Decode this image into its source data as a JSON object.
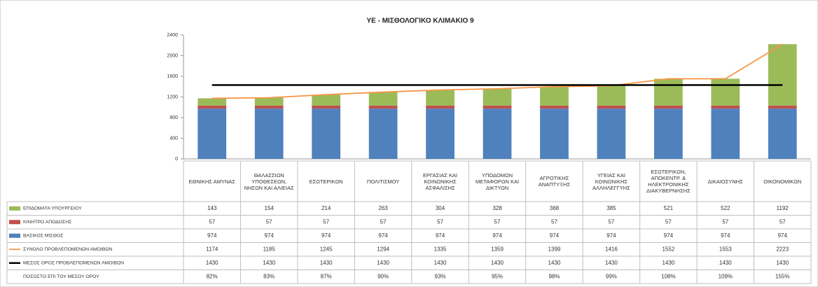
{
  "chart_data": {
    "type": "bar",
    "title": "ΥΕ - ΜΙΣΘΟΛΟΓΙΚΟ ΚΛΙΜΑΚΙΟ 9",
    "categories": [
      "ΕΘΝΙΚΗΣ ΑΜΥΝΑΣ",
      "ΘΑΛΑΣΣΙΩΝ ΥΠΟΘΕΣΕΩΝ, ΝΗΣΩΝ ΚΑΙ ΑΛΙΕΙΑΣ",
      "ΕΣΩΤΕΡΙΚΩΝ",
      "ΠΟΛΙΤΙΣΜΟΥ",
      "ΕΡΓΑΣΙΑΣ ΚΑΙ ΚΟΙΝΩΝΙΚΗΣ ΑΣΦΑΛΙΣΗΣ",
      "ΥΠΟΔΟΜΩΝ ΜΕΤΑΦΟΡΩΝ ΚΑΙ ΔΙΚΤΥΩΝ",
      "ΑΓΡΟΤΙΚΗΣ ΑΝΑΠΤΥΞΗΣ",
      "ΥΓΕΙΑΣ ΚΑΙ ΚΟΙΝΩΝΙΚΗΣ ΑΛΛΗΛΕΓΓΥΗΣ",
      "ΕΣΩΤΕΡΙΚΩΝ, ΑΠΟΚΕΝΤΡ. & ΗΛΕΚΤΡΟΝΙΚΗΣ ΔΙΑΚΥΒΕΡΝΗΣΗΣ",
      "ΔΙΚΑΙΟΣΥΝΗΣ",
      "ΟΙΚΟΝΟΜΙΚΩΝ"
    ],
    "series": [
      {
        "name": "ΕΠΙΔΟΜΑΤΑ ΥΠΟΥΡΓΕΙΟΥ",
        "kind": "bar",
        "color": "#9bbb59",
        "values": [
          143,
          154,
          214,
          263,
          304,
          328,
          368,
          385,
          521,
          522,
          1192
        ]
      },
      {
        "name": "ΚΙΝΗΤΡΟ ΑΠΟΔΟΣΗΣ",
        "kind": "bar",
        "color": "#c0504d",
        "values": [
          57,
          57,
          57,
          57,
          57,
          57,
          57,
          57,
          57,
          57,
          57
        ]
      },
      {
        "name": "ΒΑΣΙΚΟΣ ΜΙΣΘΟΣ",
        "kind": "bar",
        "color": "#4f81bd",
        "values": [
          974,
          974,
          974,
          974,
          974,
          974,
          974,
          974,
          974,
          974,
          974
        ]
      },
      {
        "name": "ΣΥΝΟΛΟ ΠΡΟΒΛΕΠΟΜΕΝΩΝ ΑΜΟΙΒΩΝ",
        "kind": "line",
        "color": "#f79646",
        "values": [
          1174,
          1185,
          1245,
          1294,
          1335,
          1359,
          1399,
          1416,
          1552,
          1553,
          2223
        ]
      },
      {
        "name": "ΜΕΣΟΣ ΟΡΟΣ ΠΡΟΒΛΕΠΟΜΕΝΩΝ ΑΜΟΙΒΩΝ",
        "kind": "line",
        "color": "#000000",
        "values": [
          1430,
          1430,
          1430,
          1430,
          1430,
          1430,
          1430,
          1430,
          1430,
          1430,
          1430
        ]
      }
    ],
    "table_extra_rows": [
      {
        "name": "ΠΟΣΟΣΤΟ ΕΠΙ ΤΟΥ ΜΕΣΟΥ ΟΡΟΥ",
        "values": [
          "82%",
          "83%",
          "87%",
          "90%",
          "93%",
          "95%",
          "98%",
          "99%",
          "108%",
          "109%",
          "155%"
        ]
      }
    ],
    "ylim": [
      0,
      2400
    ],
    "yticks": [
      0,
      400,
      800,
      1200,
      1600,
      2000,
      2400
    ],
    "grid": false
  }
}
